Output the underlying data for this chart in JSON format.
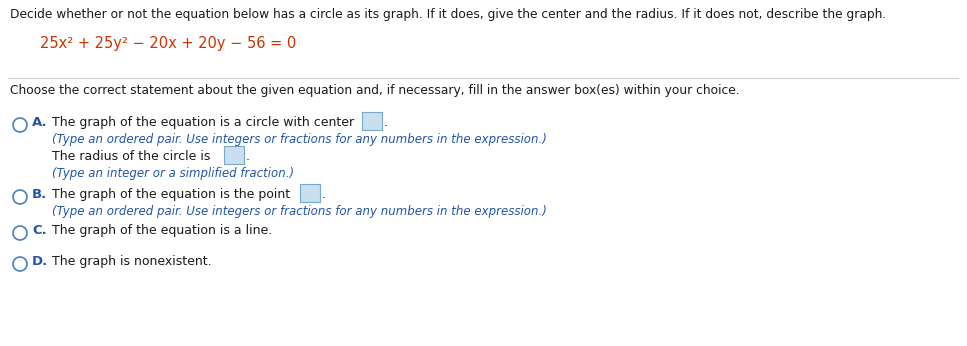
{
  "title_text": "Decide whether or not the equation below has a circle as its graph. If it does, give the center and the radius. If it does not, describe the graph.",
  "equation": "25x² + 25y² − 20x + 20y − 56 = 0",
  "choose_text": "Choose the correct statement about the given equation and, if necessary, fill in the answer box(es) within your choice.",
  "option_A_main": "The graph of the equation is a circle with center",
  "option_A_sub1": "(Type an ordered pair. Use integers or fractions for any numbers in the expression.)",
  "option_A_sub2": "The radius of the circle is",
  "option_A_sub3": "(Type an integer or a simplified fraction.)",
  "option_B_main": "The graph of the equation is the point",
  "option_B_sub": "(Type an ordered pair. Use integers or fractions for any numbers in the expression.)",
  "option_C_main": "The graph of the equation is a line.",
  "option_D_main": "The graph is nonexistent.",
  "title_color": "#1a1a1a",
  "equation_color": "#cc3300",
  "choose_color": "#1a1a1a",
  "option_label_color": "#2255aa",
  "option_main_color": "#1a1a1a",
  "subtext_color": "#2255aa",
  "circle_edge_color": "#4a80bb",
  "box_face_color": "#c8dff0",
  "box_edge_color": "#7aaac8",
  "bg_color": "#ffffff",
  "line_color": "#cccccc",
  "figw": 9.67,
  "figh": 3.46,
  "dpi": 100
}
